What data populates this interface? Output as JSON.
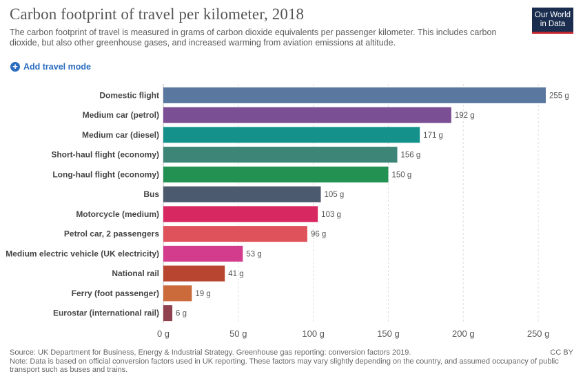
{
  "header": {
    "title": "Carbon footprint of travel per kilometer, 2018",
    "subtitle": "The carbon footprint of travel is measured in grams of carbon dioxide equivalents per passenger kilometer. This includes carbon dioxide, but also other greenhouse gases, and increased warming from aviation emissions at altitude.",
    "logo_line1": "Our World",
    "logo_line2": "in Data"
  },
  "controls": {
    "add_label": "Add travel mode",
    "add_icon": "plus-circle-icon"
  },
  "footer": {
    "source": "Source: UK Department for Business, Energy & Industrial Strategy. Greenhouse gas reporting: conversion factors 2019.",
    "note": "Note: Data is based on official conversion factors used in UK reporting. These factors may vary slightly depending on the country, and assumed occupancy of public transport such as buses and trains.",
    "license": "CC BY"
  },
  "chart_data": {
    "type": "bar",
    "orientation": "horizontal",
    "title": "Carbon footprint of travel per kilometer, 2018",
    "categories": [
      "Domestic flight",
      "Medium car (petrol)",
      "Medium car (diesel)",
      "Short-haul flight (economy)",
      "Long-haul flight (economy)",
      "Bus",
      "Motorcycle (medium)",
      "Petrol car, 2 passengers",
      "Medium electric vehicle (UK electricity)",
      "National rail",
      "Ferry (foot passenger)",
      "Eurostar (international rail)"
    ],
    "values": [
      255,
      192,
      171,
      156,
      150,
      105,
      103,
      96,
      53,
      41,
      19,
      6
    ],
    "value_labels": [
      "255 g",
      "192 g",
      "171 g",
      "156 g",
      "150 g",
      "105 g",
      "103 g",
      "96 g",
      "53 g",
      "41 g",
      "19 g",
      "6 g"
    ],
    "colors": [
      "#5a77a0",
      "#7b4f94",
      "#14918a",
      "#3c8577",
      "#229152",
      "#4b5a6f",
      "#d82862",
      "#e0525b",
      "#d33c8c",
      "#b8452f",
      "#cb6a3b",
      "#8f414f"
    ],
    "xticks": [
      0,
      50,
      100,
      150,
      200,
      250
    ],
    "xtick_labels": [
      "0 g",
      "50 g",
      "100 g",
      "150 g",
      "200 g",
      "250 g"
    ],
    "xlim": [
      0,
      255
    ],
    "grid": true,
    "grid_color": "#dddddd"
  }
}
